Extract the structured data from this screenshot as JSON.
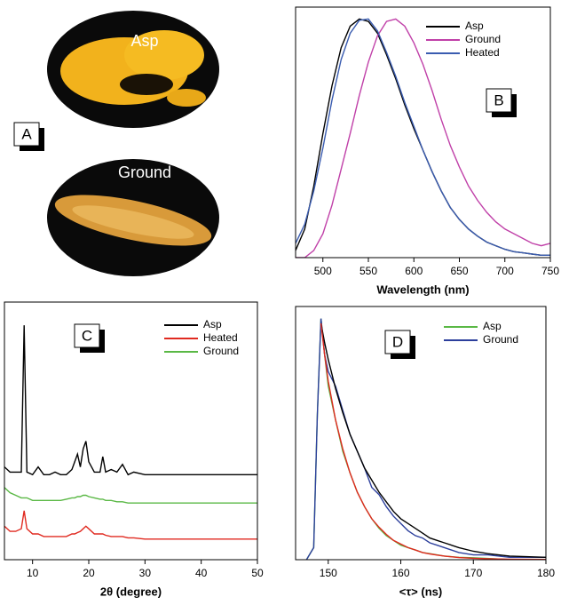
{
  "panel_a": {
    "label": "A",
    "photos": [
      "Asp",
      "Ground"
    ]
  },
  "chart_data": [
    {
      "type": "line",
      "panel_label": "B",
      "xlabel": "Wavelength (nm)",
      "x": [
        470,
        480,
        490,
        500,
        510,
        520,
        530,
        540,
        550,
        560,
        570,
        580,
        590,
        600,
        610,
        620,
        630,
        640,
        650,
        660,
        670,
        680,
        690,
        700,
        710,
        720,
        730,
        740,
        750
      ],
      "xlim": [
        470,
        750
      ],
      "xticks": [
        500,
        550,
        600,
        650,
        700,
        750
      ],
      "ylim": [
        0,
        1.05
      ],
      "series": [
        {
          "name": "Asp",
          "color": "#000000",
          "values": [
            0.03,
            0.12,
            0.3,
            0.52,
            0.72,
            0.88,
            0.97,
            1.0,
            0.99,
            0.94,
            0.85,
            0.75,
            0.64,
            0.54,
            0.45,
            0.36,
            0.28,
            0.21,
            0.16,
            0.12,
            0.09,
            0.065,
            0.05,
            0.035,
            0.025,
            0.02,
            0.015,
            0.01,
            0.01
          ]
        },
        {
          "name": "Ground",
          "color": "#c040a8",
          "values": [
            0.0,
            0.0,
            0.03,
            0.1,
            0.22,
            0.37,
            0.52,
            0.68,
            0.82,
            0.93,
            0.99,
            1.0,
            0.97,
            0.9,
            0.81,
            0.7,
            0.58,
            0.47,
            0.38,
            0.3,
            0.24,
            0.19,
            0.15,
            0.12,
            0.1,
            0.08,
            0.06,
            0.05,
            0.06
          ]
        },
        {
          "name": "Heated",
          "color": "#3a5cb0",
          "values": [
            0.06,
            0.14,
            0.28,
            0.46,
            0.66,
            0.83,
            0.94,
            0.995,
            1.0,
            0.95,
            0.86,
            0.76,
            0.65,
            0.55,
            0.45,
            0.36,
            0.28,
            0.21,
            0.16,
            0.12,
            0.09,
            0.065,
            0.05,
            0.035,
            0.025,
            0.02,
            0.015,
            0.01,
            0.01
          ]
        }
      ]
    },
    {
      "type": "line",
      "panel_label": "C",
      "xlabel": "2θ  (degree)",
      "x": [
        5,
        6,
        7,
        8,
        8.5,
        9,
        10,
        11,
        12,
        13,
        14,
        15,
        16,
        17,
        17.5,
        18,
        18.5,
        19,
        19.5,
        20,
        21,
        22,
        22.5,
        23,
        24,
        25,
        26,
        27,
        28,
        30,
        32,
        35,
        40,
        45,
        50
      ],
      "xlim": [
        5,
        50
      ],
      "xticks": [
        10,
        20,
        30,
        40,
        50
      ],
      "ylim": [
        0,
        1
      ],
      "series": [
        {
          "name": "Asp",
          "color": "#000000",
          "values": [
            0.36,
            0.34,
            0.34,
            0.34,
            0.91,
            0.34,
            0.33,
            0.36,
            0.33,
            0.33,
            0.34,
            0.33,
            0.33,
            0.35,
            0.38,
            0.41,
            0.36,
            0.43,
            0.46,
            0.38,
            0.34,
            0.34,
            0.4,
            0.34,
            0.35,
            0.34,
            0.37,
            0.33,
            0.34,
            0.33,
            0.33,
            0.33,
            0.33,
            0.33,
            0.33
          ]
        },
        {
          "name": "Heated",
          "color": "#e02a20",
          "values": [
            0.13,
            0.11,
            0.11,
            0.12,
            0.19,
            0.12,
            0.1,
            0.1,
            0.09,
            0.09,
            0.09,
            0.09,
            0.09,
            0.1,
            0.1,
            0.105,
            0.11,
            0.12,
            0.13,
            0.12,
            0.1,
            0.1,
            0.1,
            0.095,
            0.09,
            0.09,
            0.09,
            0.085,
            0.085,
            0.08,
            0.08,
            0.08,
            0.08,
            0.08,
            0.08
          ]
        },
        {
          "name": "Ground",
          "color": "#5ab845",
          "values": [
            0.28,
            0.26,
            0.25,
            0.24,
            0.24,
            0.24,
            0.23,
            0.23,
            0.23,
            0.23,
            0.23,
            0.23,
            0.235,
            0.24,
            0.24,
            0.245,
            0.245,
            0.25,
            0.25,
            0.245,
            0.24,
            0.235,
            0.235,
            0.23,
            0.23,
            0.225,
            0.225,
            0.22,
            0.22,
            0.22,
            0.22,
            0.22,
            0.22,
            0.22,
            0.22
          ]
        }
      ]
    },
    {
      "type": "line",
      "panel_label": "D",
      "xlabel": "<τ> (ns)",
      "x": [
        147,
        148,
        148.5,
        149,
        149.5,
        150,
        151,
        152,
        153,
        154,
        155,
        156,
        157,
        158,
        159,
        160,
        161,
        162,
        163,
        164,
        165,
        166,
        168,
        170,
        172,
        175,
        180
      ],
      "xlim": [
        145.5,
        180
      ],
      "xticks": [
        150,
        160,
        170,
        180
      ],
      "ylim": [
        0,
        1.05
      ],
      "series": [
        {
          "name": "Asp",
          "color": "#5ab845",
          "values": [
            0,
            0.05,
            0.6,
            1.0,
            0.85,
            0.72,
            0.58,
            0.45,
            0.36,
            0.28,
            0.22,
            0.17,
            0.13,
            0.1,
            0.08,
            0.06,
            0.05,
            0.04,
            0.03,
            0.025,
            0.02,
            0.015,
            0.01,
            0.008,
            0.005,
            0.0,
            0.0
          ]
        },
        {
          "name": "Ground",
          "color": "#2c3f9c",
          "values": [
            0,
            0.05,
            0.6,
            1.0,
            0.85,
            0.78,
            0.72,
            0.62,
            0.52,
            0.45,
            0.38,
            0.3,
            0.27,
            0.22,
            0.18,
            0.15,
            0.12,
            0.1,
            0.09,
            0.07,
            0.06,
            0.05,
            0.03,
            0.02,
            0.02,
            0.01,
            0.01
          ]
        },
        {
          "color": "#000000",
          "values": [
            null,
            null,
            null,
            0.98,
            0.9,
            0.83,
            0.71,
            0.61,
            0.52,
            0.45,
            0.38,
            0.33,
            0.28,
            0.24,
            0.2,
            0.17,
            0.15,
            0.13,
            0.11,
            0.09,
            0.08,
            0.07,
            0.05,
            0.035,
            0.025,
            0.015,
            0.01
          ]
        },
        {
          "color": "#e02a20",
          "values": [
            null,
            null,
            null,
            0.98,
            0.85,
            0.74,
            0.58,
            0.46,
            0.36,
            0.28,
            0.22,
            0.17,
            0.135,
            0.105,
            0.08,
            0.065,
            0.05,
            0.04,
            0.03,
            0.024,
            0.019,
            0.015,
            0.009,
            0.006,
            0.004,
            0.002,
            0.001
          ]
        }
      ]
    }
  ]
}
